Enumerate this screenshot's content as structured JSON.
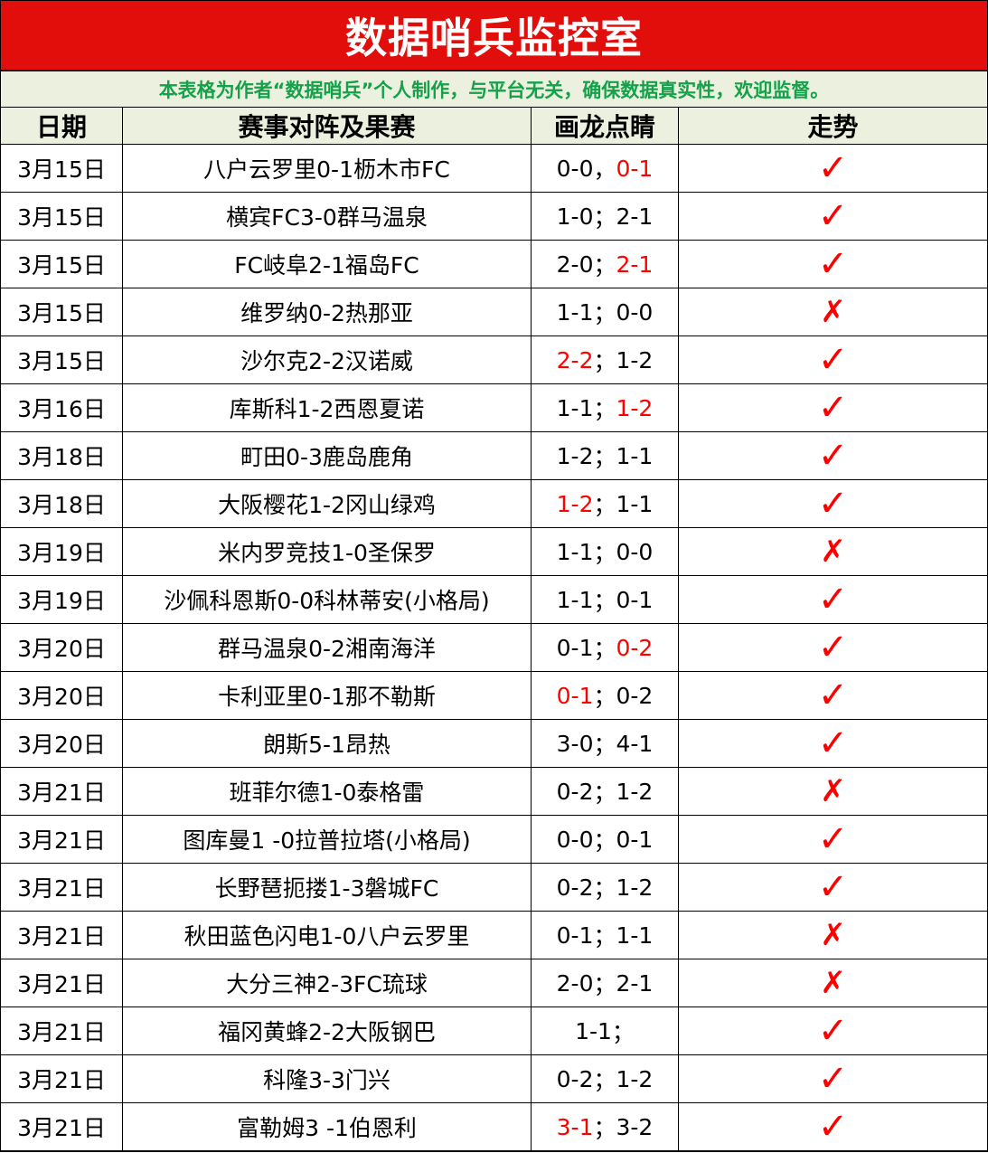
{
  "title": "数据哨兵监控室",
  "subtitle": "本表格为作者“数据哨兵”个人制作，与平台无关，确保数据真实性，欢迎监督。",
  "headers": {
    "date": "日期",
    "match": "赛事对阵及果赛",
    "pick": "画龙点睛",
    "trend": "走势"
  },
  "colors": {
    "title_bg": "#e20e0c",
    "subtitle_text": "#14a14a",
    "header_bg": "#ebf1de",
    "hit": "#ff0000"
  },
  "rows": [
    {
      "date": "3月15日",
      "match": "八户云罗里0-1枥木市FC",
      "p1": "0-0",
      "sep": "，",
      "p2": "0-1",
      "hit": "p2",
      "trend": "✓"
    },
    {
      "date": "3月15日",
      "match": "横宾FC3-0群马温泉",
      "p1": "1-0",
      "sep": "；",
      "p2": "2-1",
      "hit": "",
      "trend": "✓"
    },
    {
      "date": "3月15日",
      "match": "FC岐阜2-1福岛FC",
      "p1": "2-0",
      "sep": "；",
      "p2": "2-1",
      "hit": "p2",
      "trend": "✓"
    },
    {
      "date": "3月15日",
      "match": "维罗纳0-2热那亚",
      "p1": "1-1",
      "sep": "；",
      "p2": "0-0",
      "hit": "",
      "trend": "✗"
    },
    {
      "date": "3月15日",
      "match": "沙尔克2-2汉诺威",
      "p1": "2-2",
      "sep": "；",
      "p2": "1-2",
      "hit": "p1",
      "trend": "✓"
    },
    {
      "date": "3月16日",
      "match": "库斯科1-2西恩夏诺",
      "p1": "1-1",
      "sep": "；",
      "p2": "1-2",
      "hit": "p2",
      "trend": "✓"
    },
    {
      "date": "3月18日",
      "match": "町田0-3鹿岛鹿角",
      "p1": "1-2",
      "sep": "；",
      "p2": "1-1",
      "hit": "",
      "trend": "✓"
    },
    {
      "date": "3月18日",
      "match": "大阪樱花1-2冈山绿鸡",
      "p1": "1-2",
      "sep": "；",
      "p2": "1-1",
      "hit": "p1",
      "trend": "✓"
    },
    {
      "date": "3月19日",
      "match": "米内罗竞技1-0圣保罗",
      "p1": "1-1",
      "sep": "；",
      "p2": "0-0",
      "hit": "",
      "trend": "✗"
    },
    {
      "date": "3月19日",
      "match": "沙佩科恩斯0-0科林蒂安(小格局)",
      "p1": "1-1",
      "sep": "；",
      "p2": "0-1",
      "hit": "",
      "trend": "✓"
    },
    {
      "date": "3月20日",
      "match": "群马温泉0-2湘南海洋",
      "p1": "0-1",
      "sep": "；",
      "p2": "0-2",
      "hit": "p2",
      "trend": "✓"
    },
    {
      "date": "3月20日",
      "match": "卡利亚里0-1那不勒斯",
      "p1": "0-1",
      "sep": "；",
      "p2": "0-2",
      "hit": "p1",
      "trend": "✓"
    },
    {
      "date": "3月20日",
      "match": "朗斯5-1昂热",
      "p1": "3-0",
      "sep": "；",
      "p2": "4-1",
      "hit": "",
      "trend": "✓"
    },
    {
      "date": "3月21日",
      "match": "班菲尔德1-0泰格雷",
      "p1": "0-2",
      "sep": "；",
      "p2": "1-2",
      "hit": "",
      "trend": "✗"
    },
    {
      "date": "3月21日",
      "match": "图库曼1 -0拉普拉塔(小格局)",
      "p1": "0-0",
      "sep": "；",
      "p2": "0-1",
      "hit": "",
      "trend": "✓"
    },
    {
      "date": "3月21日",
      "match": "长野琶扼搂1-3磐城FC",
      "p1": "0-2",
      "sep": "；",
      "p2": "1-2",
      "hit": "",
      "trend": "✓"
    },
    {
      "date": "3月21日",
      "match": "秋田蓝色闪电1-0八户云罗里",
      "p1": "0-1",
      "sep": "；",
      "p2": "1-1",
      "hit": "",
      "trend": "✗"
    },
    {
      "date": "3月21日",
      "match": "大分三神2-3FC琉球",
      "p1": "2-0",
      "sep": "；",
      "p2": "2-1",
      "hit": "",
      "trend": "✗"
    },
    {
      "date": "3月21日",
      "match": "福冈黄蜂2-2大阪钢巴",
      "p1": "1-1",
      "sep": "；",
      "p2": "",
      "hit": "",
      "trend": "✓"
    },
    {
      "date": "3月21日",
      "match": "科隆3-3门兴",
      "p1": "0-2",
      "sep": "；",
      "p2": "1-2",
      "hit": "",
      "trend": "✓"
    },
    {
      "date": "3月21日",
      "match": "富勒姆3 -1伯恩利",
      "p1": "3-1",
      "sep": "；",
      "p2": "3-2",
      "hit": "p1",
      "trend": "✓"
    }
  ]
}
